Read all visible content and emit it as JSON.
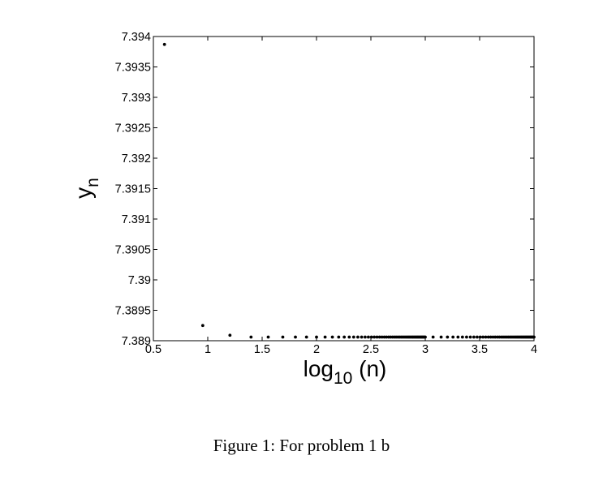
{
  "caption": "Figure 1: For problem 1 b",
  "chart_data": {
    "type": "scatter",
    "title": "",
    "xlabel_main": "log",
    "xlabel_sub": "10",
    "xlabel_rest": " (n)",
    "ylabel_main": "y",
    "ylabel_sub": "n",
    "xlim": [
      0.5,
      4
    ],
    "ylim": [
      7.389,
      7.394
    ],
    "xticks": [
      0.5,
      1,
      1.5,
      2,
      2.5,
      3,
      3.5,
      4
    ],
    "xtick_labels": [
      "0.5",
      "1",
      "1.5",
      "2",
      "2.5",
      "3",
      "3.5",
      "4"
    ],
    "yticks": [
      7.389,
      7.3895,
      7.39,
      7.3905,
      7.391,
      7.3915,
      7.392,
      7.3925,
      7.393,
      7.3935,
      7.394
    ],
    "ytick_labels": [
      "7.389",
      "7.3895",
      "7.39",
      "7.3905",
      "7.391",
      "7.3915",
      "7.392",
      "7.3925",
      "7.393",
      "7.3935",
      "7.394"
    ],
    "grid": false,
    "marker_color": "#000000",
    "series": [
      {
        "x": [
          0.602,
          0.954,
          1.204,
          1.398,
          1.556,
          1.69,
          1.806,
          1.908,
          2.0,
          2.079,
          2.146,
          2.204,
          2.255,
          2.301,
          2.342,
          2.38,
          2.415,
          2.447,
          2.477,
          2.505,
          2.531,
          2.556,
          2.58,
          2.602,
          2.623,
          2.643,
          2.663,
          2.681,
          2.699,
          2.716,
          2.732,
          2.748,
          2.763,
          2.778,
          2.792,
          2.806,
          2.82,
          2.833,
          2.845,
          2.857,
          2.869,
          2.881,
          2.892,
          2.903,
          2.914,
          2.924,
          2.934,
          2.944,
          2.954,
          2.964,
          2.973,
          2.982,
          2.991,
          3.0,
          3.072,
          3.146,
          3.204,
          3.255,
          3.301,
          3.342,
          3.38,
          3.415,
          3.447,
          3.477,
          3.505,
          3.531,
          3.556,
          3.58,
          3.602,
          3.623,
          3.643,
          3.663,
          3.681,
          3.699,
          3.716,
          3.732,
          3.748,
          3.763,
          3.778,
          3.792,
          3.806,
          3.82,
          3.833,
          3.845,
          3.857,
          3.869,
          3.881,
          3.892,
          3.903,
          3.914,
          3.924,
          3.934,
          3.944,
          3.954,
          3.964,
          3.973,
          3.982,
          3.991,
          4.0
        ],
        "y": [
          7.39387,
          7.38925,
          7.38909,
          7.38906,
          7.38906,
          7.38906,
          7.38906,
          7.38906,
          7.38906,
          7.38906,
          7.38906,
          7.38906,
          7.38906,
          7.38906,
          7.38906,
          7.38906,
          7.38906,
          7.38906,
          7.38906,
          7.38906,
          7.38906,
          7.38906,
          7.38906,
          7.38906,
          7.38906,
          7.38906,
          7.38906,
          7.38906,
          7.38906,
          7.38906,
          7.38906,
          7.38906,
          7.38906,
          7.38906,
          7.38906,
          7.38906,
          7.38906,
          7.38906,
          7.38906,
          7.38906,
          7.38906,
          7.38906,
          7.38906,
          7.38906,
          7.38906,
          7.38906,
          7.38906,
          7.38906,
          7.38906,
          7.38906,
          7.38906,
          7.38906,
          7.38906,
          7.38906,
          7.38906,
          7.38906,
          7.38906,
          7.38906,
          7.38906,
          7.38906,
          7.38906,
          7.38906,
          7.38906,
          7.38906,
          7.38906,
          7.38906,
          7.38906,
          7.38906,
          7.38906,
          7.38906,
          7.38906,
          7.38906,
          7.38906,
          7.38906,
          7.38906,
          7.38906,
          7.38906,
          7.38906,
          7.38906,
          7.38906,
          7.38906,
          7.38906,
          7.38906,
          7.38906,
          7.38906,
          7.38906,
          7.38906,
          7.38906,
          7.38906,
          7.38906,
          7.38906,
          7.38906,
          7.38906,
          7.38906,
          7.38906,
          7.38906,
          7.38906,
          7.38906,
          7.38906
        ]
      }
    ]
  }
}
